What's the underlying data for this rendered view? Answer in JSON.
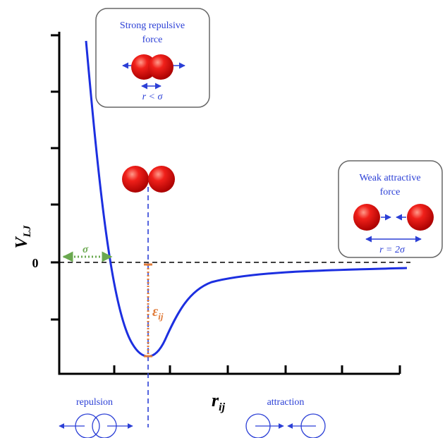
{
  "y_axis": {
    "label": "V",
    "label_sub": "LJ",
    "zero": "0"
  },
  "x_axis": {
    "label": "r",
    "label_sub": "ij"
  },
  "sigma": "σ",
  "epsilon": {
    "main": "ε",
    "sub": "ij"
  },
  "repulsive_box": {
    "line1": "Strong repulsive",
    "line2": "force",
    "condition": "r < σ"
  },
  "attractive_box": {
    "line1": "Weak attractive",
    "line2": "force",
    "condition": "r = 2σ"
  },
  "bottom": {
    "left": "repulsion",
    "right": "attraction"
  }
}
